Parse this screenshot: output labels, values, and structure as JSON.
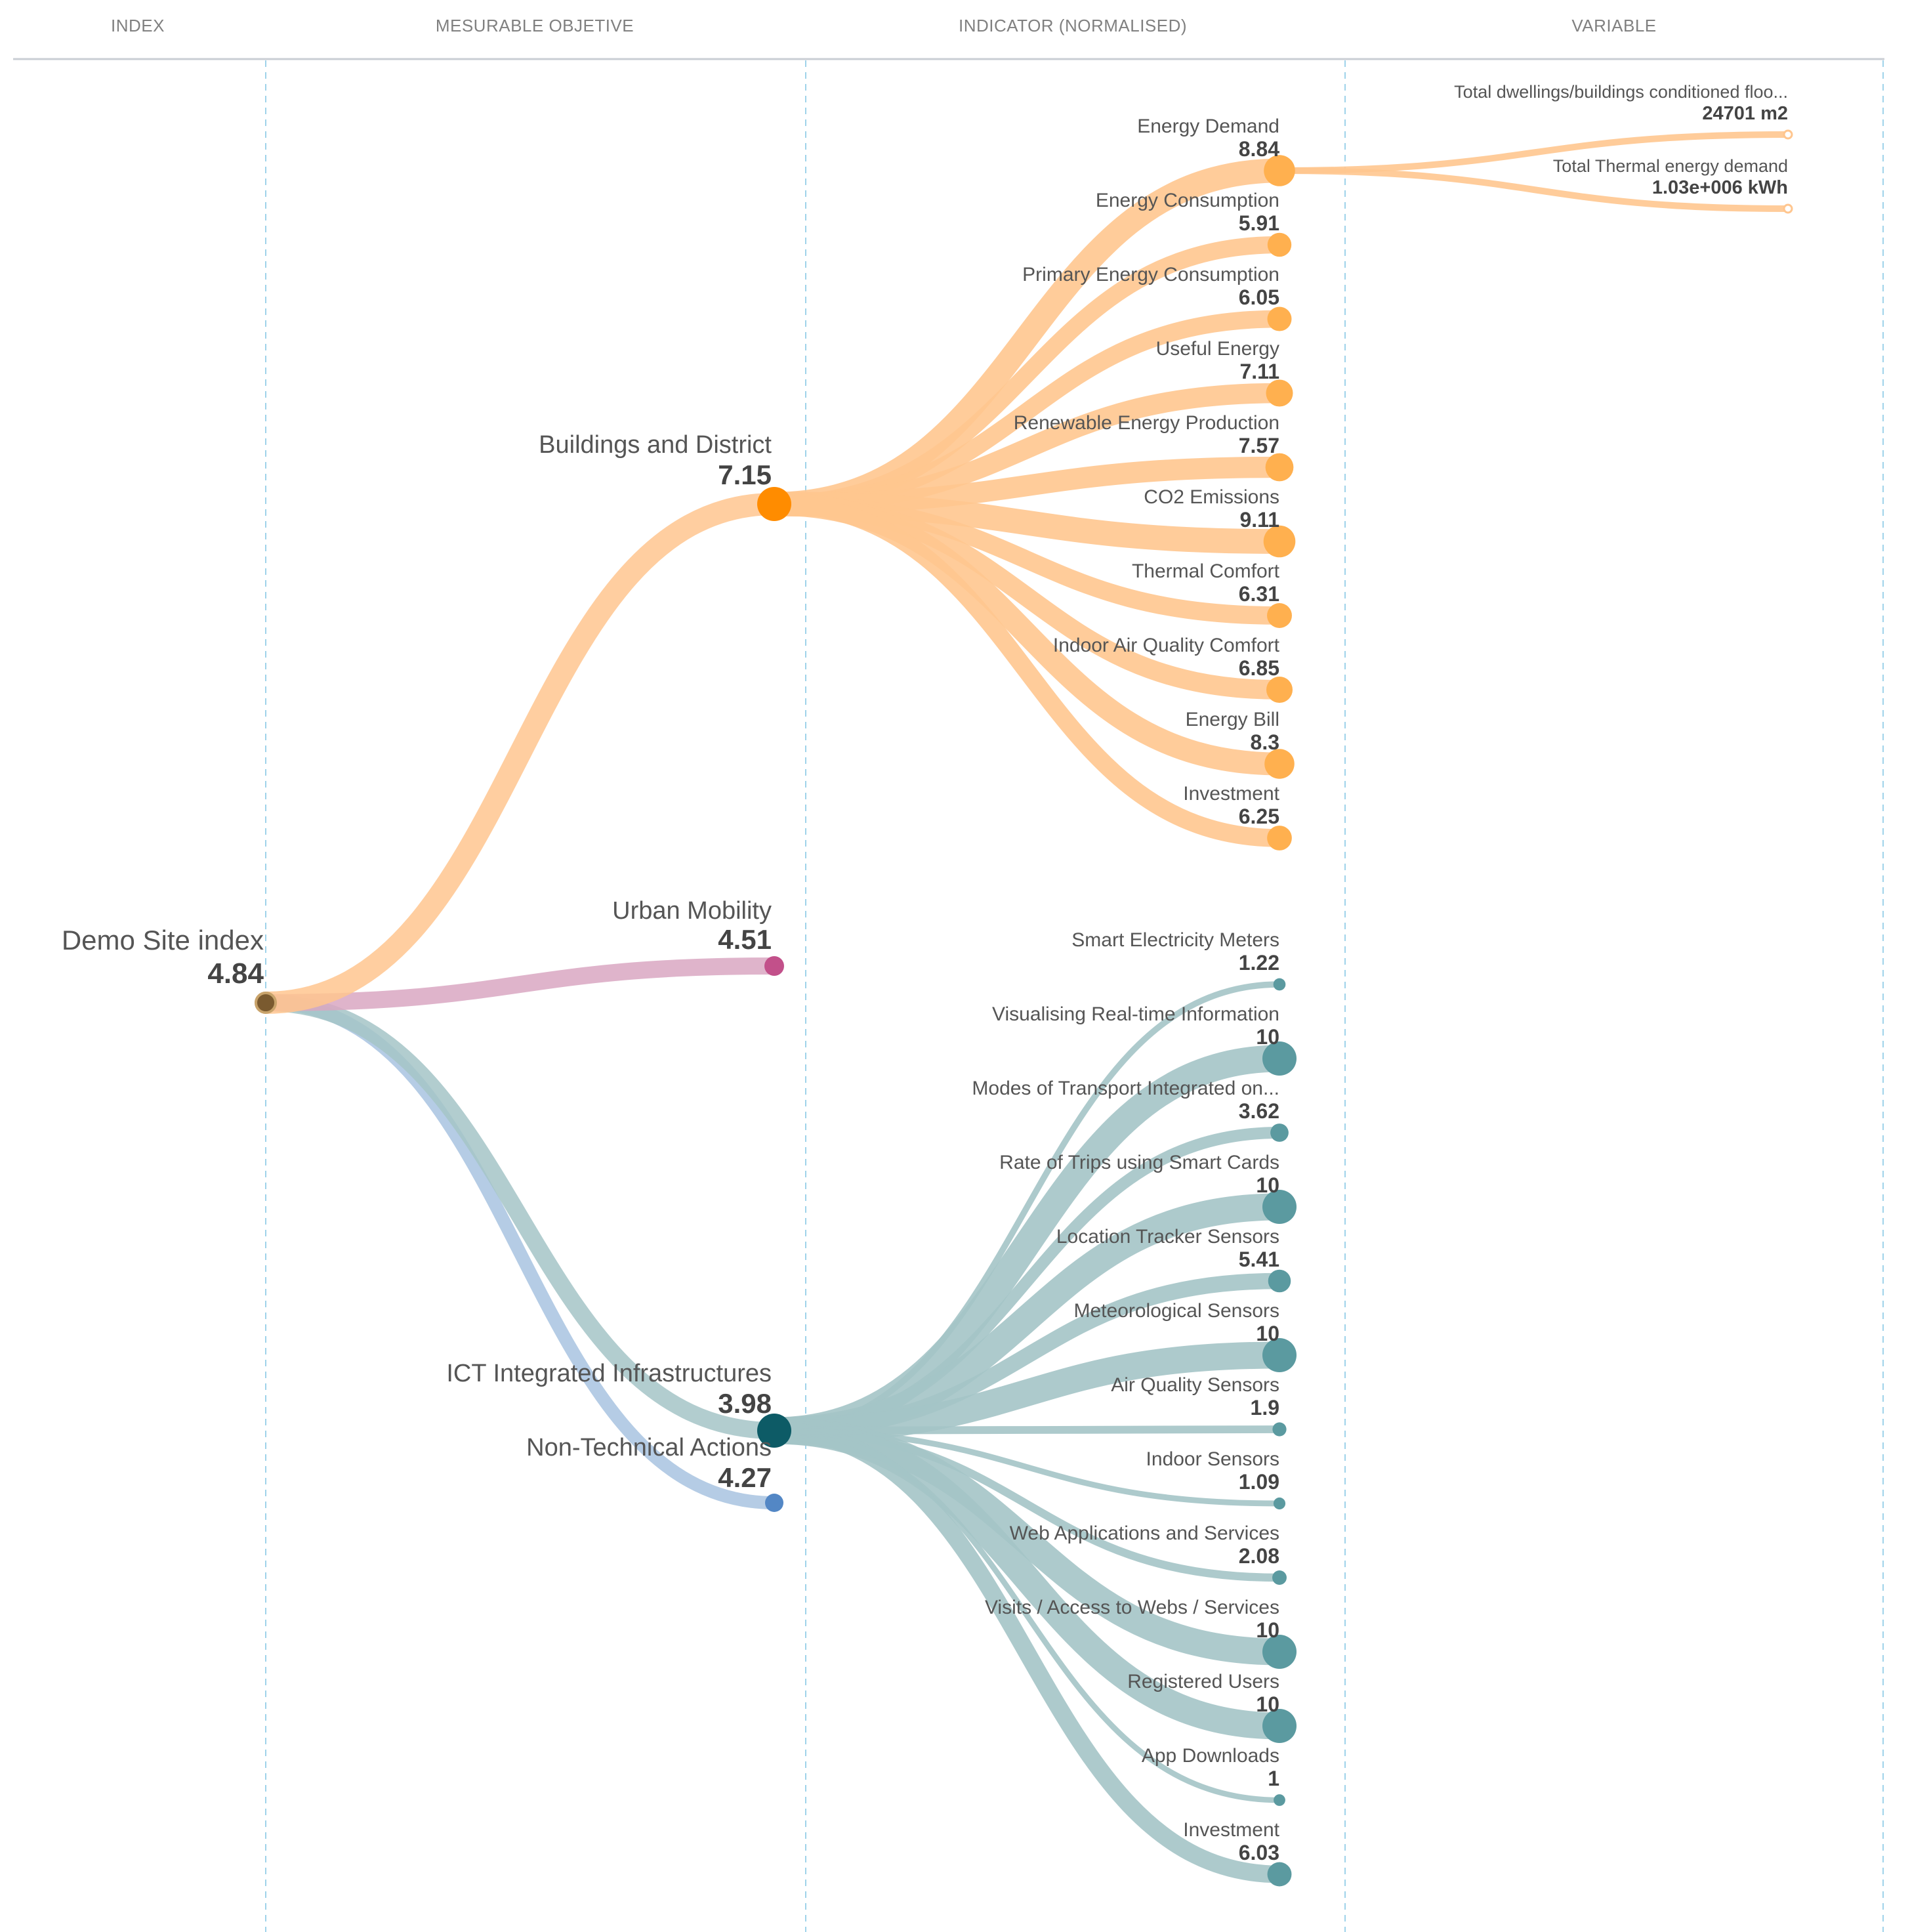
{
  "header": {
    "index": "INDEX",
    "objective": "MESURABLE OBJETIVE",
    "indicator": "INDICATOR (NORMALISED)",
    "variable": "VARIABLE"
  },
  "colors": {
    "orange_node": "#ff8c00",
    "orange_link": "#ffc68f",
    "pink_node": "#c2508a",
    "pink_link": "#d9a7c2",
    "teal_node": "#0d5b66",
    "teal_link": "#a4c4c7",
    "blue_node": "#5387c5",
    "blue_link": "#a8c3e0"
  },
  "root": {
    "label": "Demo Site index",
    "value": "4.84"
  },
  "objectives": [
    {
      "label": "Buildings and District",
      "value": "7.15",
      "color": "orange",
      "indicators": [
        {
          "label": "Energy Demand",
          "value": "8.84",
          "num": 8.84,
          "variables": [
            {
              "label": "Total dwellings/buildings conditioned floo...",
              "value": "24701 m2"
            },
            {
              "label": "Total Thermal energy demand",
              "value": "1.03e+006 kWh"
            }
          ]
        },
        {
          "label": "Energy Consumption",
          "value": "5.91",
          "num": 5.91
        },
        {
          "label": "Primary Energy Consumption",
          "value": "6.05",
          "num": 6.05
        },
        {
          "label": "Useful Energy",
          "value": "7.11",
          "num": 7.11
        },
        {
          "label": "Renewable Energy Production",
          "value": "7.57",
          "num": 7.57
        },
        {
          "label": "CO2 Emissions",
          "value": "9.11",
          "num": 9.11
        },
        {
          "label": "Thermal Comfort",
          "value": "6.31",
          "num": 6.31
        },
        {
          "label": "Indoor Air Quality Comfort",
          "value": "6.85",
          "num": 6.85
        },
        {
          "label": "Energy Bill",
          "value": "8.3",
          "num": 8.3
        },
        {
          "label": "Investment",
          "value": "6.25",
          "num": 6.25
        }
      ]
    },
    {
      "label": "Urban Mobility",
      "value": "4.51",
      "color": "pink",
      "indicators": []
    },
    {
      "label": "ICT Integrated Infrastructures",
      "value": "3.98",
      "color": "teal",
      "indicators": [
        {
          "label": "Smart Electricity Meters",
          "value": "1.22",
          "num": 1.22
        },
        {
          "label": "Visualising Real-time Information",
          "value": "10",
          "num": 10
        },
        {
          "label": "Modes of Transport Integrated on...",
          "value": "3.62",
          "num": 3.62
        },
        {
          "label": "Rate of Trips using Smart Cards",
          "value": "10",
          "num": 10
        },
        {
          "label": "Location Tracker Sensors",
          "value": "5.41",
          "num": 5.41
        },
        {
          "label": "Meteorological Sensors",
          "value": "10",
          "num": 10
        },
        {
          "label": "Air Quality Sensors",
          "value": "1.9",
          "num": 1.9
        },
        {
          "label": "Indoor Sensors",
          "value": "1.09",
          "num": 1.09
        },
        {
          "label": "Web Applications and Services",
          "value": "2.08",
          "num": 2.08
        },
        {
          "label": "Visits / Access to Webs / Services",
          "value": "10",
          "num": 10
        },
        {
          "label": "Registered Users",
          "value": "10",
          "num": 10
        },
        {
          "label": "App Downloads",
          "value": "1",
          "num": 1
        },
        {
          "label": "Investment",
          "value": "6.03",
          "num": 6.03
        }
      ]
    },
    {
      "label": "Non-Technical Actions",
      "value": "4.27",
      "color": "blue",
      "indicators": []
    }
  ]
}
